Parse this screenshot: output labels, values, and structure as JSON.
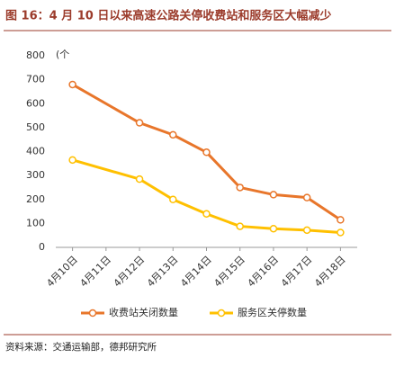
{
  "chart_data": {
    "type": "line",
    "title": "图 16：4 月 10 日以来高速公路关停收费站和服务区大幅减少",
    "y_label": "(个",
    "source": "资料来源：交通运输部，德邦研究所",
    "xticks": [
      "4月10日",
      "4月11日",
      "4月12日",
      "4月13日",
      "4月14日",
      "4月15日",
      "4月16日",
      "4月17日",
      "4月18日"
    ],
    "x": [
      "4月10日",
      "4月12日",
      "4月13日",
      "4月14日",
      "4月15日",
      "4月16日",
      "4月17日",
      "4月18日"
    ],
    "series": [
      {
        "name": "收费站关闭数量",
        "color": "#e8762b",
        "values": [
          680,
          520,
          470,
          397,
          250,
          220,
          208,
          115
        ]
      },
      {
        "name": "服务区关停数量",
        "color": "#ffc000",
        "values": [
          365,
          285,
          200,
          140,
          88,
          78,
          72,
          62
        ]
      }
    ],
    "ylim": [
      0,
      800
    ],
    "yticks": [
      0,
      100,
      200,
      300,
      400,
      500,
      600,
      700,
      800
    ]
  }
}
